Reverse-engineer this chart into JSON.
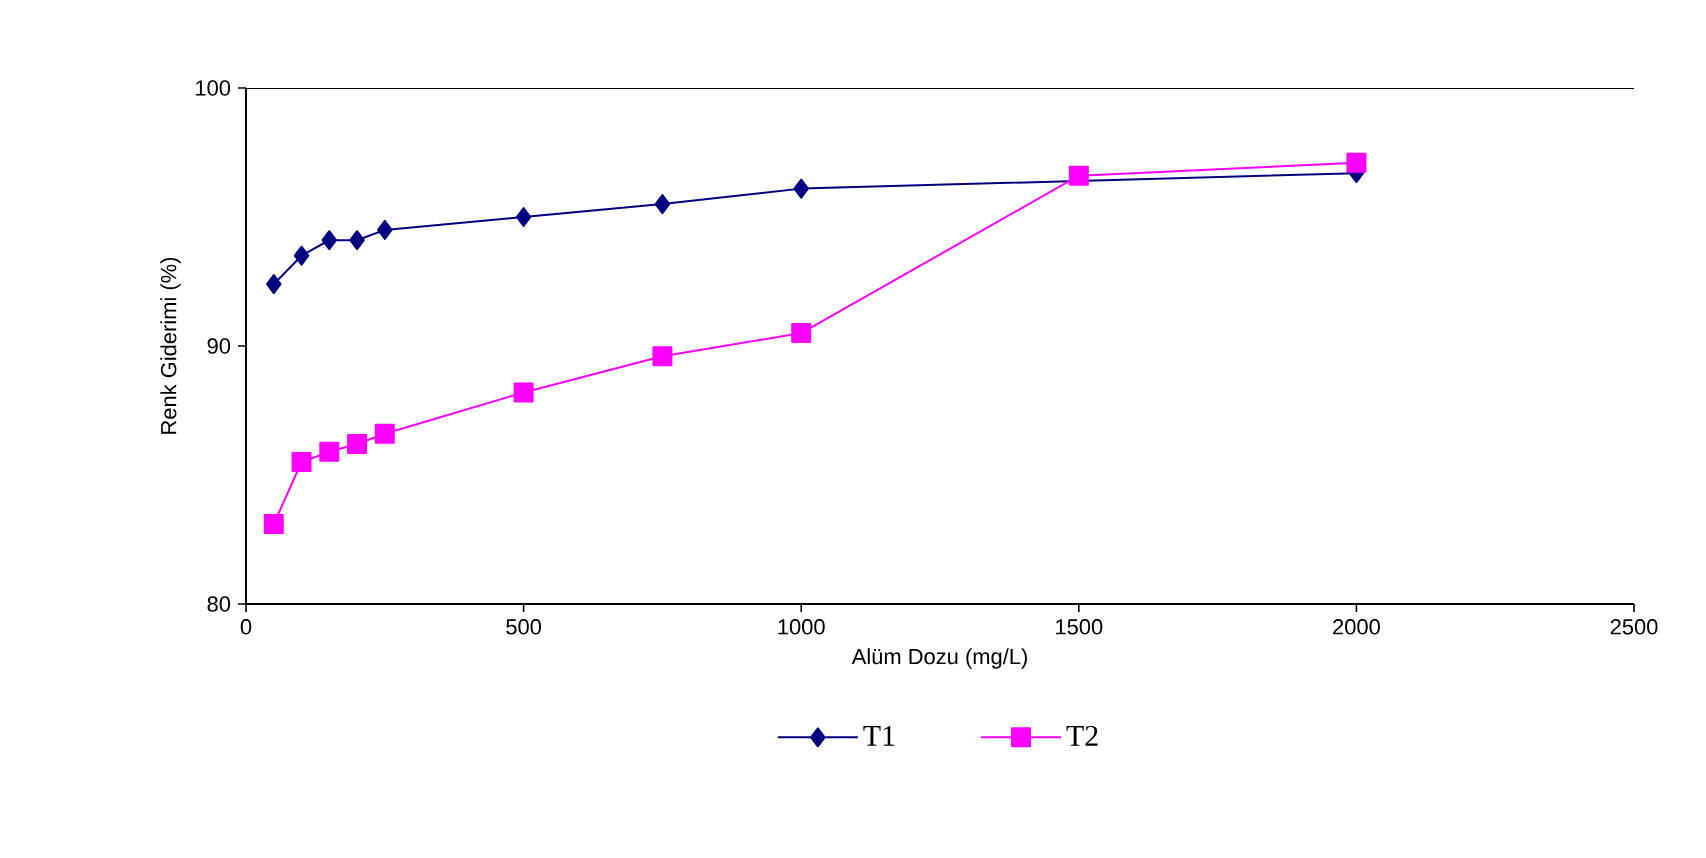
{
  "chart_data": {
    "type": "line",
    "xlabel": "Alüm Dozu (mg/L)",
    "ylabel": "Renk Giderimi (%)",
    "x": [
      50,
      100,
      150,
      200,
      250,
      500,
      750,
      1000,
      1500,
      2000
    ],
    "series": [
      {
        "name": "T1",
        "color": "#000080",
        "marker": "diamond",
        "values": [
          92.4,
          93.5,
          94.1,
          94.1,
          94.5,
          95.0,
          95.5,
          96.1,
          null,
          96.7
        ]
      },
      {
        "name": "T2",
        "color": "#ff00ff",
        "marker": "square",
        "values": [
          83.1,
          85.5,
          85.9,
          86.2,
          86.6,
          88.2,
          89.6,
          90.5,
          96.6,
          97.1
        ]
      }
    ],
    "xlim": [
      0,
      2500
    ],
    "xticks": [
      0,
      500,
      1000,
      1500,
      2000,
      2500
    ],
    "ylim": [
      80,
      100
    ],
    "yticks": [
      80,
      90,
      100
    ],
    "grid": false,
    "legend": "bottom",
    "line_style": "solid"
  }
}
